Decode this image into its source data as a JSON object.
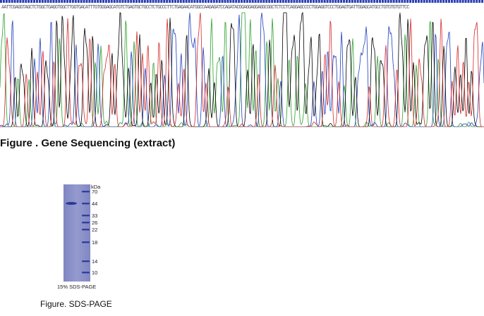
{
  "sequence": {
    "bases": "AATTCGAGGTAGCTCTGGCTGAGGTGGCTTGGTGACATTTGTGGGAGCATGTCTGAGTGCTGCCTCTGCCCTTCTGAGAACATGGCCAAGAGATCCAGATACGGAGGAGGAGGCGGCTCTCCTCAGGAGCCCCTGGAGGTCCCTGGAGTGATTGGAGCATGCCTGTGTGTGTTCC",
    "base_colors": {
      "A": "#2ca02c",
      "C": "#1f3fbf",
      "G": "#000000",
      "T": "#d62728"
    }
  },
  "captions": {
    "gene_sequencing": "Figure . Gene Sequencing (extract)",
    "gel_type": "15% SDS-PAGE",
    "sds_page": "Figure. SDS-PAGE"
  },
  "gel": {
    "unit": "kDa",
    "markers": [
      "70",
      "44",
      "33",
      "26",
      "22",
      "18",
      "14",
      "10"
    ],
    "lane_color": "#8a8fc4",
    "band_color": "#2f3fa0"
  }
}
